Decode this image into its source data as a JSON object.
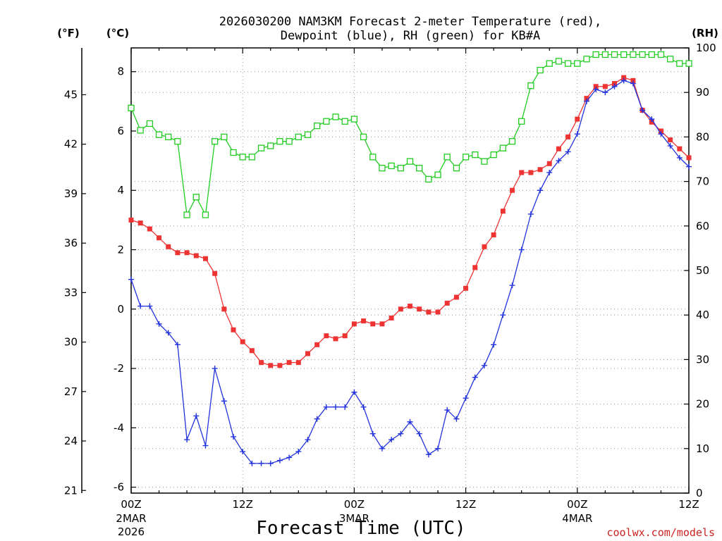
{
  "chart_data": {
    "type": "line",
    "title_line1": "2026030200 NAM3KM Forecast 2-meter Temperature (red),",
    "title_line2": "Dewpoint (blue), RH (green) for KB#A",
    "units": {
      "fahrenheit": "(°F)",
      "celsius": "(°C)",
      "rh": "(RH)"
    },
    "xlabel": "Forecast Time (UTC)",
    "credit": "coolwx.com/models",
    "x_hours_range": [
      0,
      60
    ],
    "x_ticks": [
      {
        "hour": 0,
        "label": "00Z",
        "sub1": "2MAR",
        "sub2": "2026"
      },
      {
        "hour": 12,
        "label": "12Z",
        "sub1": "",
        "sub2": ""
      },
      {
        "hour": 24,
        "label": "00Z",
        "sub1": "3MAR",
        "sub2": ""
      },
      {
        "hour": 36,
        "label": "12Z",
        "sub1": "",
        "sub2": ""
      },
      {
        "hour": 48,
        "label": "00Z",
        "sub1": "4MAR",
        "sub2": ""
      },
      {
        "hour": 60,
        "label": "12Z",
        "sub1": "",
        "sub2": ""
      }
    ],
    "celsius_range": [
      -6.2,
      8.8
    ],
    "celsius_ticks": [
      {
        "value": 8,
        "label": "8"
      },
      {
        "value": 6,
        "label": "6"
      },
      {
        "value": 4,
        "label": "4"
      },
      {
        "value": 2,
        "label": "2"
      },
      {
        "value": 0,
        "label": "0"
      },
      {
        "value": -2,
        "label": "-2"
      },
      {
        "value": -4,
        "label": "-4"
      },
      {
        "value": -6,
        "label": "-6"
      }
    ],
    "fahrenheit_ticks": [
      {
        "value": 45,
        "label": "45"
      },
      {
        "value": 42,
        "label": "42"
      },
      {
        "value": 39,
        "label": "39"
      },
      {
        "value": 36,
        "label": "36"
      },
      {
        "value": 33,
        "label": "33"
      },
      {
        "value": 30,
        "label": "30"
      },
      {
        "value": 27,
        "label": "27"
      },
      {
        "value": 24,
        "label": "24"
      },
      {
        "value": 21,
        "label": "21"
      }
    ],
    "rh_range": [
      0,
      100
    ],
    "rh_ticks": [
      {
        "value": 100,
        "label": "100"
      },
      {
        "value": 90,
        "label": "90"
      },
      {
        "value": 80,
        "label": "80"
      },
      {
        "value": 70,
        "label": "70"
      },
      {
        "value": 60,
        "label": "60"
      },
      {
        "value": 50,
        "label": "50"
      },
      {
        "value": 40,
        "label": "40"
      },
      {
        "value": 30,
        "label": "30"
      },
      {
        "value": 20,
        "label": "20"
      },
      {
        "value": 10,
        "label": "10"
      },
      {
        "value": 0,
        "label": "0"
      }
    ],
    "colors": {
      "temperature": "#ee3333",
      "dewpoint": "#2233dd",
      "rh": "#22cc22",
      "grid": "#999999",
      "axis": "#000000"
    },
    "series": [
      {
        "name": "Temperature (°C)",
        "key": "temperature",
        "marker": "filled-square",
        "values": [
          3.0,
          2.9,
          2.7,
          2.4,
          2.1,
          1.9,
          1.9,
          1.8,
          1.7,
          1.2,
          0.0,
          -0.7,
          -1.1,
          -1.4,
          -1.8,
          -1.9,
          -1.9,
          -1.8,
          -1.8,
          -1.5,
          -1.2,
          -0.9,
          -1.0,
          -0.9,
          -0.5,
          -0.4,
          -0.5,
          -0.5,
          -0.3,
          0.0,
          0.1,
          0.0,
          -0.1,
          -0.1,
          0.2,
          0.4,
          0.7,
          1.4,
          2.1,
          2.5,
          3.3,
          4.0,
          4.6,
          4.6,
          4.7,
          4.9,
          5.4,
          5.8,
          6.4,
          7.1,
          7.5,
          7.5,
          7.6,
          7.8,
          7.7,
          6.7,
          6.3,
          6.0,
          5.7,
          5.4,
          5.1
        ]
      },
      {
        "name": "Dewpoint (°C)",
        "key": "dewpoint",
        "marker": "plus",
        "values": [
          1.0,
          0.1,
          0.1,
          -0.5,
          -0.8,
          -1.2,
          -4.4,
          -3.6,
          -4.6,
          -2.0,
          -3.1,
          -4.3,
          -4.8,
          -5.2,
          -5.2,
          -5.2,
          -5.1,
          -5.0,
          -4.8,
          -4.4,
          -3.7,
          -3.3,
          -3.3,
          -3.3,
          -2.8,
          -3.3,
          -4.2,
          -4.7,
          -4.4,
          -4.2,
          -3.8,
          -4.2,
          -4.9,
          -4.7,
          -3.4,
          -3.7,
          -3.0,
          -2.3,
          -1.9,
          -1.2,
          -0.2,
          0.8,
          2.0,
          3.2,
          4.0,
          4.6,
          5.0,
          5.3,
          5.9,
          7.0,
          7.4,
          7.3,
          7.5,
          7.7,
          7.6,
          6.7,
          6.4,
          5.9,
          5.5,
          5.1,
          4.8
        ]
      },
      {
        "name": "RH (%)",
        "key": "rh",
        "marker": "open-square",
        "values": [
          86.5,
          81.5,
          83.0,
          80.5,
          80.0,
          79.0,
          62.5,
          66.5,
          62.5,
          79.0,
          80.0,
          76.5,
          75.5,
          75.5,
          77.5,
          78.0,
          79.0,
          79.0,
          80.0,
          80.5,
          82.5,
          83.5,
          84.5,
          83.5,
          84.0,
          80.0,
          75.5,
          73.0,
          73.5,
          73.0,
          74.5,
          73.0,
          70.5,
          71.5,
          75.5,
          73.0,
          75.5,
          76.0,
          74.5,
          76.0,
          77.5,
          79.0,
          83.5,
          91.5,
          95.0,
          96.5,
          97.0,
          96.5,
          96.5,
          97.5,
          98.5,
          98.5,
          98.5,
          98.5,
          98.5,
          98.5,
          98.5,
          98.5,
          97.5,
          96.5,
          96.5
        ]
      }
    ]
  }
}
